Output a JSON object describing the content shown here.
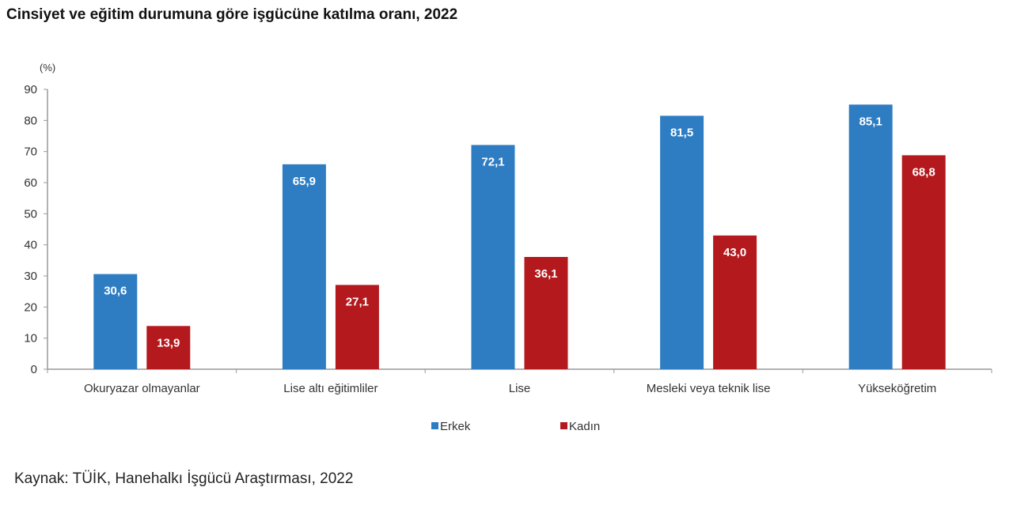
{
  "chart_data": {
    "type": "bar",
    "title": "Cinsiyet ve eğitim durumuna göre işgücüne katılma oranı, 2022",
    "ylabel": "(%)",
    "xlabel": "",
    "ylim": [
      0,
      90
    ],
    "yticks": [
      0,
      10,
      20,
      30,
      40,
      50,
      60,
      70,
      80,
      90
    ],
    "categories": [
      "Okuryazar olmayanlar",
      "Lise altı eğitimliler",
      "Lise",
      "Mesleki veya teknik lise",
      "Yükseköğretim"
    ],
    "series": [
      {
        "name": "Erkek",
        "color": "#2e7dc3",
        "values": [
          30.6,
          65.9,
          72.1,
          81.5,
          85.1
        ],
        "labels": [
          "30,6",
          "65,9",
          "72,1",
          "81,5",
          "85,1"
        ]
      },
      {
        "name": "Kadın",
        "color": "#b3191d",
        "values": [
          13.9,
          27.1,
          36.1,
          43.0,
          68.8
        ],
        "labels": [
          "13,9",
          "27,1",
          "36,1",
          "43,0",
          "68,8"
        ]
      }
    ],
    "grid": false,
    "legend_position": "bottom"
  },
  "source": "Kaynak: TÜİK, Hanehalkı İşgücü Araştırması, 2022"
}
